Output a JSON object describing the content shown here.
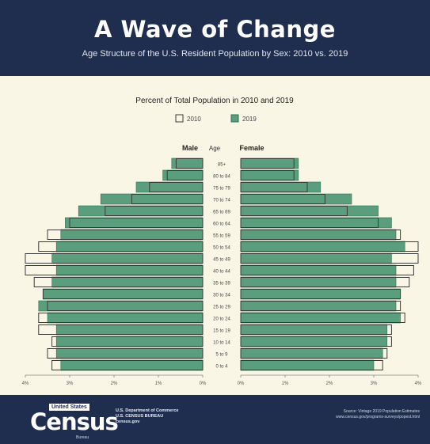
{
  "header": {
    "title": "A Wave of Change",
    "subtitle": "Age Structure of the U.S. Resident Population by Sex: 2010 vs. 2019"
  },
  "chart_data": {
    "type": "bar",
    "orientation": "horizontal",
    "subtype": "population-pyramid",
    "title": "Percent of Total Population in 2010 and 2019",
    "side_labels": {
      "left": "Male",
      "center": "Age",
      "right": "Female"
    },
    "categories": [
      "85+",
      "80 to 84",
      "75 to 79",
      "70 to 74",
      "65 to 69",
      "60 to 64",
      "55 to 59",
      "50 to 54",
      "45 to 49",
      "40 to 44",
      "35 to 39",
      "30 to 34",
      "25 to 29",
      "20 to 24",
      "15 to 19",
      "10 to 14",
      "5 to 9",
      "0 to 4"
    ],
    "series": [
      {
        "name": "2010",
        "style": "outline",
        "male": [
          0.6,
          0.8,
          1.2,
          1.6,
          2.2,
          3.0,
          3.5,
          3.7,
          4.0,
          4.0,
          3.8,
          3.6,
          3.5,
          3.7,
          3.7,
          3.4,
          3.5,
          3.4
        ],
        "female": [
          1.2,
          1.2,
          1.5,
          1.9,
          2.4,
          3.1,
          3.6,
          4.0,
          4.0,
          3.9,
          3.8,
          3.6,
          3.6,
          3.7,
          3.4,
          3.4,
          3.3,
          3.2
        ]
      },
      {
        "name": "2019",
        "style": "filled",
        "male": [
          0.7,
          0.9,
          1.5,
          2.3,
          2.8,
          3.1,
          3.2,
          3.3,
          3.4,
          3.3,
          3.4,
          3.6,
          3.7,
          3.5,
          3.3,
          3.3,
          3.3,
          3.2
        ],
        "female": [
          1.3,
          1.3,
          1.8,
          2.5,
          3.1,
          3.4,
          3.5,
          3.7,
          3.4,
          3.5,
          3.5,
          3.6,
          3.5,
          3.6,
          3.3,
          3.3,
          3.2,
          3.0
        ]
      }
    ],
    "x_ticks": [
      "4%",
      "3%",
      "2%",
      "1%",
      "0%",
      "0%",
      "1%",
      "2%",
      "3%",
      "4%"
    ],
    "xlim": [
      0,
      4
    ],
    "legend_position": "top-center",
    "colors": {
      "2019_fill": "#5a9e7e",
      "2019_stroke": "#2e6f52",
      "2010_stroke": "#3a3a3a",
      "panel_bg": "#faf6e6"
    }
  },
  "footer": {
    "logo_top": "United States",
    "logo_word": "Census",
    "logo_bottom": "Bureau",
    "dept_lines": [
      "U.S. Department of Commerce",
      "U.S. CENSUS BUREAU",
      "census.gov"
    ],
    "source_lines": [
      "Source: Vintage 2019 Population Estimates",
      "www.census.gov/programs-surveys/popest.html"
    ]
  }
}
